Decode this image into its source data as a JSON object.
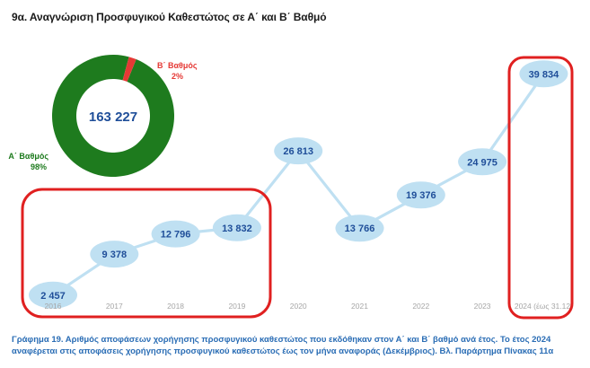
{
  "title": "9α. Αναγνώριση Προσφυγικού Καθεστώτος σε Α΄ και Β΄ Βαθμό",
  "caption": "Γράφημα 19. Αριθμός αποφάσεων χορήγησης προσφυγικού καθεστώτος που εκδόθηκαν στον Α΄ και Β΄ βαθμό ανά έτος. Το έτος 2024 αναφέρεται στις αποφάσεις χορήγησης προσφυγικού καθεστώτος έως τον μήνα αναφοράς (Δεκέμβριος). Βλ. Παράρτημα Πίνακας 11α",
  "colors": {
    "bubble": "#bfe0f2",
    "line": "#bfe0f2",
    "value_text": "#1f4e99",
    "axis_text": "#a6a6a6",
    "donut_a": "#1e7b1e",
    "donut_b": "#e53935",
    "highlight": "#e02020"
  },
  "chart_data": [
    {
      "type": "line",
      "categories": [
        "2016",
        "2017",
        "2018",
        "2019",
        "2020",
        "2021",
        "2022",
        "2023",
        "2024 (έως 31.12)"
      ],
      "series": [
        {
          "values": [
            2457,
            9378,
            12796,
            13832,
            26813,
            13766,
            19376,
            24975,
            39834
          ],
          "labels": [
            "2 457",
            "9 378",
            "12 796",
            "13 832",
            "26 813",
            "13 766",
            "19 376",
            "24 975",
            "39 834"
          ]
        }
      ],
      "ylim": [
        0,
        42000
      ]
    },
    {
      "type": "pie",
      "center_label": "163 227",
      "slices": [
        {
          "name": "Α΄ Βαθμός",
          "percent_label": "98%",
          "value": 98
        },
        {
          "name": "Β΄ Βαθμός",
          "percent_label": "2%",
          "value": 2
        }
      ]
    }
  ]
}
